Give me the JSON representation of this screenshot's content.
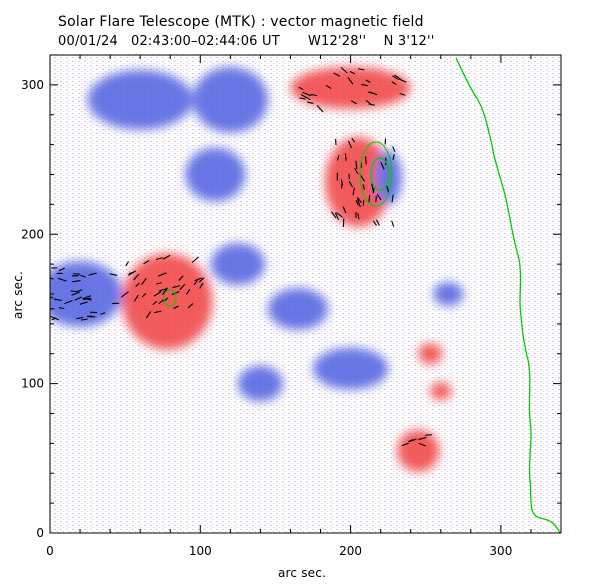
{
  "header": {
    "title": "Solar Flare Telescope (MTK) : vector magnetic field",
    "time_range": "00/01/24   02:43:00–02:44:06 UT",
    "position": "W12'28''    N 3'12''"
  },
  "axes": {
    "xlabel": "arc sec.",
    "ylabel": "arc sec.",
    "xrange": [
      0,
      340
    ],
    "yrange": [
      0,
      320
    ],
    "xticks": [
      "0",
      "100",
      "200",
      "300"
    ],
    "yticks": [
      "0",
      "100",
      "200",
      "300"
    ]
  },
  "colors": {
    "positive_polarity": "#f04040",
    "negative_polarity": "#5060e0",
    "contour": "#00cc00",
    "vectors": "#000000",
    "frame": "#000000"
  },
  "regions": [
    {
      "polarity": "negative",
      "cx": 20,
      "cy": 160,
      "rx": 28,
      "ry": 22
    },
    {
      "polarity": "positive",
      "cx": 78,
      "cy": 155,
      "rx": 30,
      "ry": 32
    },
    {
      "polarity": "positive",
      "cx": 200,
      "cy": 298,
      "rx": 40,
      "ry": 14
    },
    {
      "polarity": "positive",
      "cx": 205,
      "cy": 235,
      "rx": 22,
      "ry": 30
    },
    {
      "polarity": "negative",
      "cx": 225,
      "cy": 238,
      "rx": 9,
      "ry": 18
    },
    {
      "polarity": "negative",
      "cx": 60,
      "cy": 290,
      "rx": 35,
      "ry": 20
    },
    {
      "polarity": "negative",
      "cx": 120,
      "cy": 290,
      "rx": 25,
      "ry": 22
    },
    {
      "polarity": "negative",
      "cx": 110,
      "cy": 240,
      "rx": 20,
      "ry": 18
    },
    {
      "polarity": "negative",
      "cx": 125,
      "cy": 180,
      "rx": 18,
      "ry": 14
    },
    {
      "polarity": "negative",
      "cx": 165,
      "cy": 150,
      "rx": 20,
      "ry": 14
    },
    {
      "polarity": "negative",
      "cx": 200,
      "cy": 110,
      "rx": 25,
      "ry": 14
    },
    {
      "polarity": "negative",
      "cx": 140,
      "cy": 100,
      "rx": 15,
      "ry": 12
    },
    {
      "polarity": "positive",
      "cx": 245,
      "cy": 55,
      "rx": 14,
      "ry": 14
    },
    {
      "polarity": "positive",
      "cx": 253,
      "cy": 120,
      "rx": 8,
      "ry": 7
    },
    {
      "polarity": "positive",
      "cx": 260,
      "cy": 95,
      "rx": 7,
      "ry": 6
    },
    {
      "polarity": "negative",
      "cx": 265,
      "cy": 160,
      "rx": 10,
      "ry": 8
    }
  ]
}
